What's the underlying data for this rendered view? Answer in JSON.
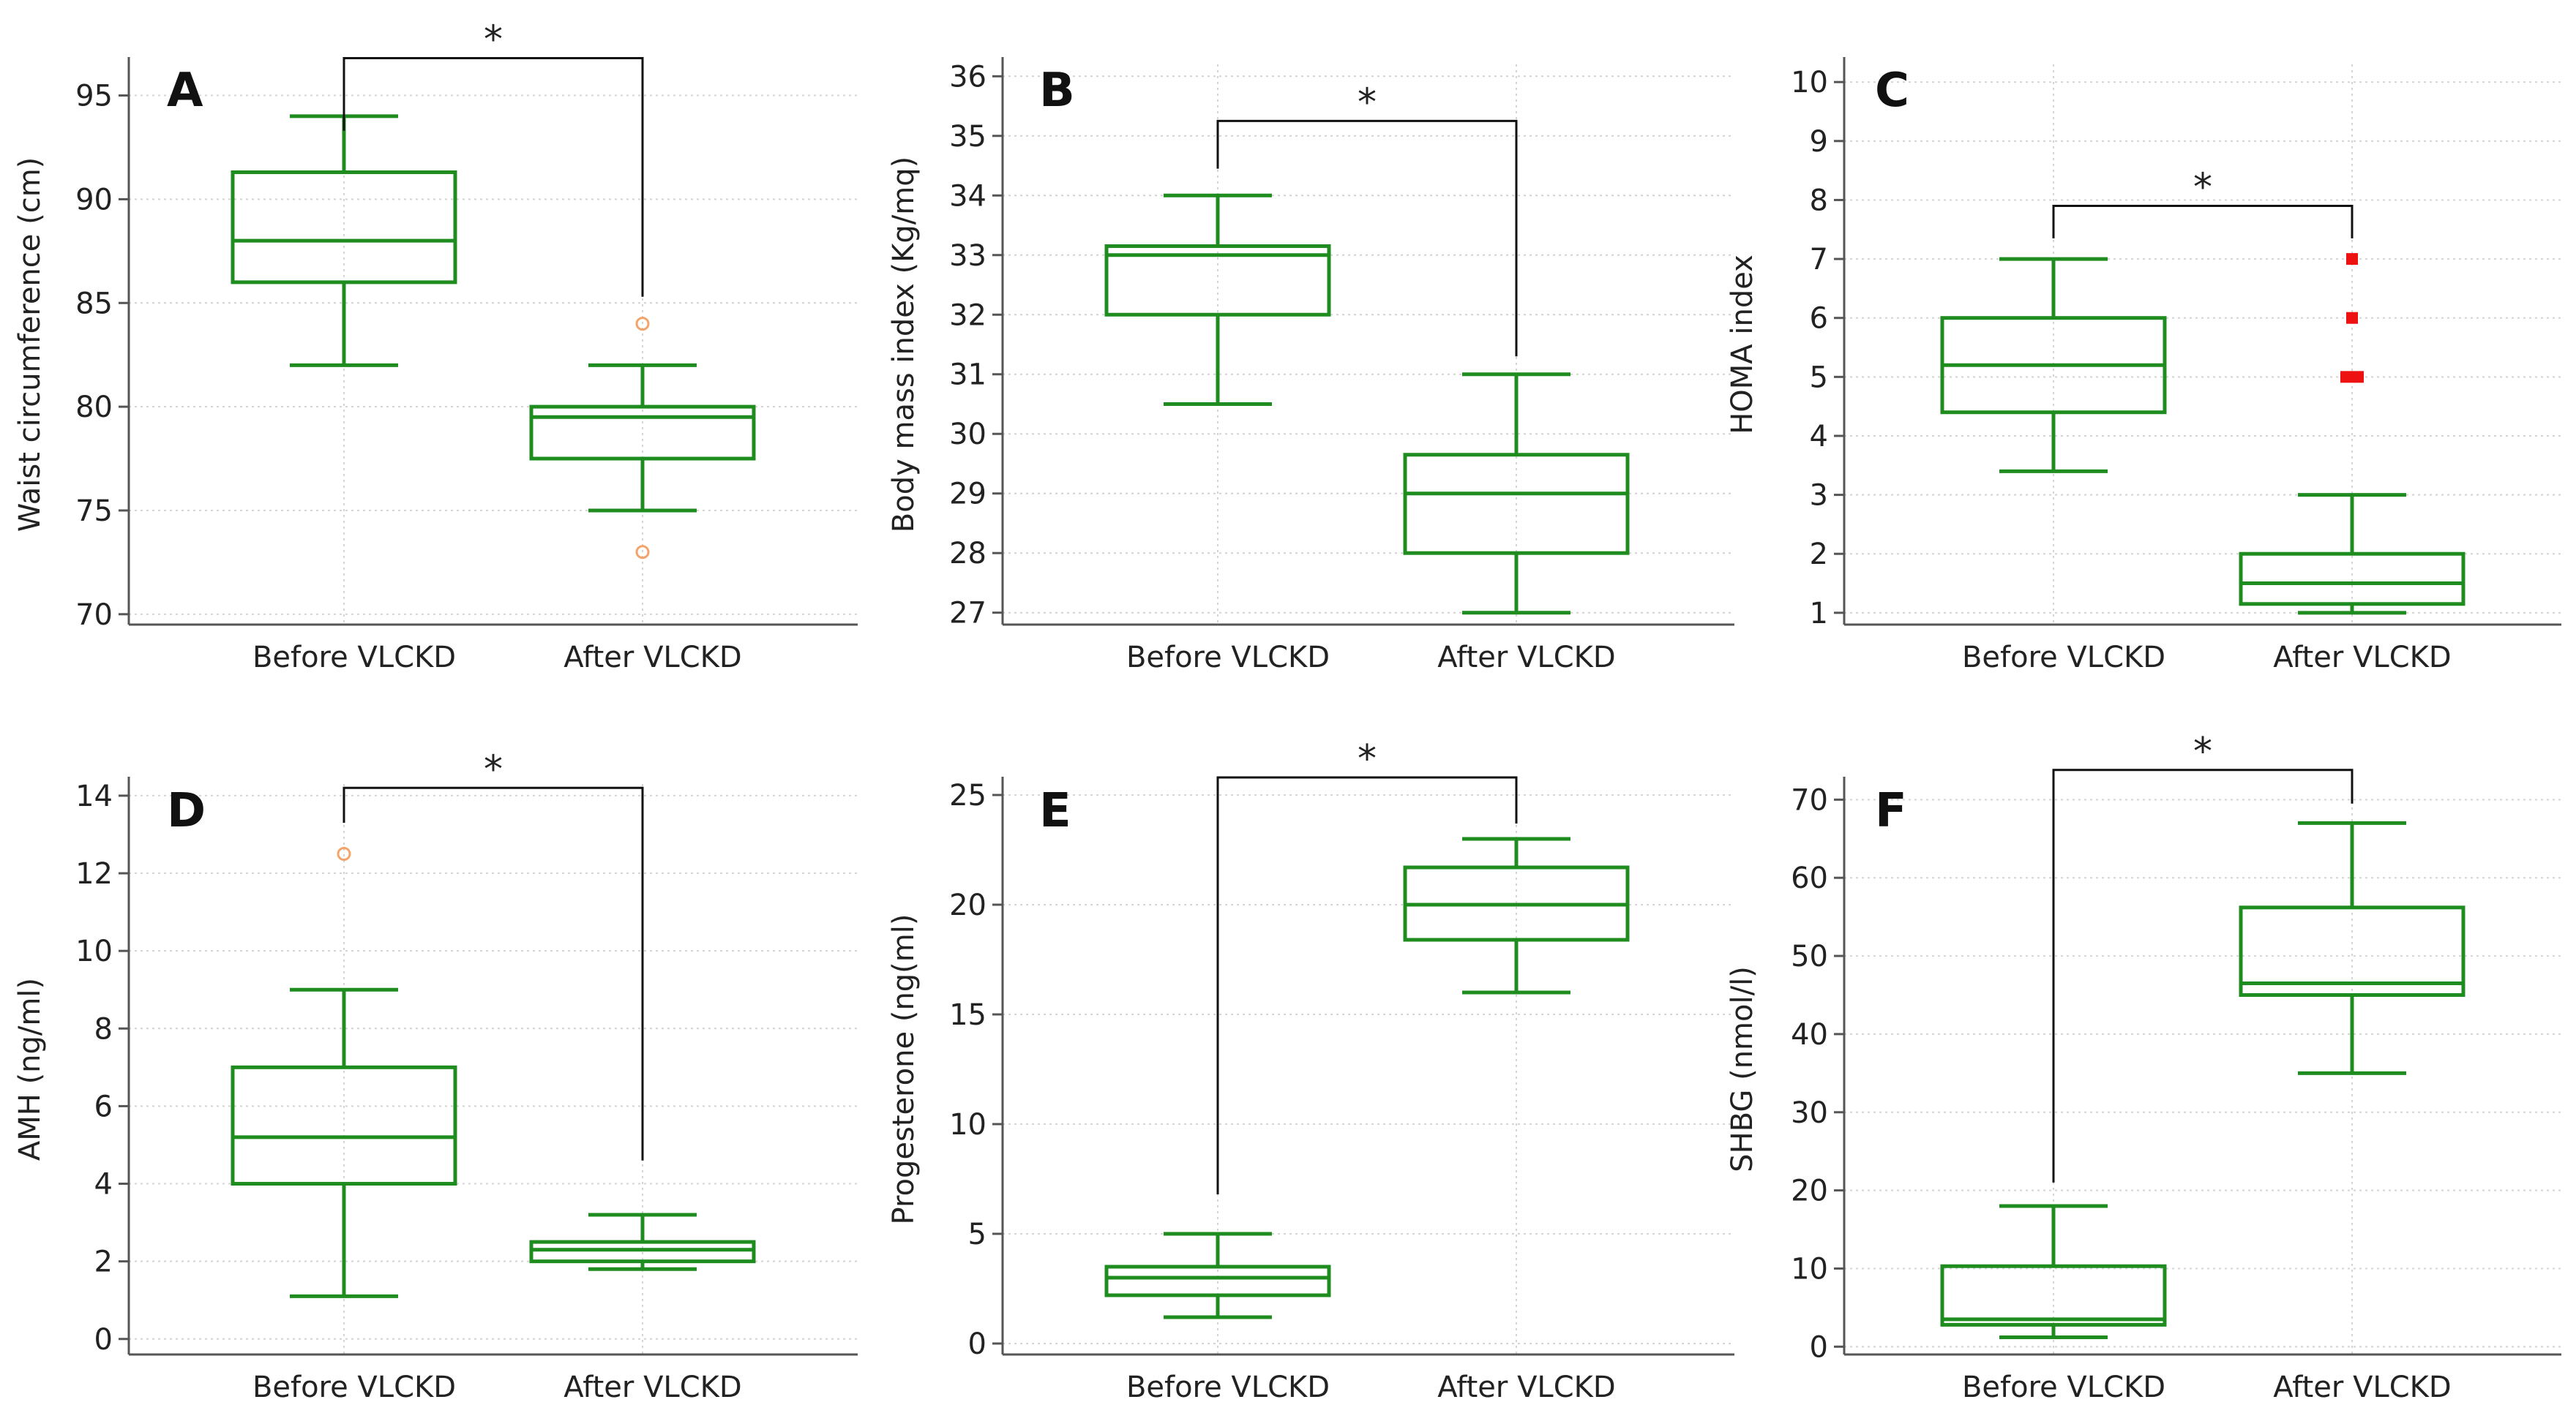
{
  "colors": {
    "box": "#1f8c1f",
    "grid": "#d4d4d4",
    "axis": "#555555",
    "bracket": "#111111",
    "outlier_open": "#f4a46a",
    "outlier_far": "#ee1111"
  },
  "chart_data": [
    {
      "panel": "A",
      "type": "box",
      "ylabel": "Waist circumference (cm)",
      "yticks": [
        70,
        75,
        80,
        85,
        90,
        95
      ],
      "ylim": [
        69.5,
        96.5
      ],
      "categories": [
        "Before VLCKD",
        "After VLCKD"
      ],
      "boxes": [
        {
          "whisker_low": 82,
          "q1": 86,
          "median": 88,
          "q3": 91.3,
          "whisker_high": 94,
          "outliers": []
        },
        {
          "whisker_low": 75,
          "q1": 77.5,
          "median": 79.5,
          "q3": 80,
          "whisker_high": 82,
          "outliers": [
            84,
            73
          ]
        }
      ],
      "significance": {
        "label": "*",
        "top": 96.8,
        "left_end": 93.3,
        "right_end": 85.3
      }
    },
    {
      "panel": "B",
      "type": "box",
      "ylabel": "Body mass index (Kg/mq)",
      "yticks": [
        27,
        28,
        29,
        30,
        31,
        32,
        33,
        34,
        35,
        36
      ],
      "ylim": [
        26.8,
        36.2
      ],
      "categories": [
        "Before VLCKD",
        "After VLCKD"
      ],
      "boxes": [
        {
          "whisker_low": 30.5,
          "q1": 32,
          "median": 33,
          "q3": 33.15,
          "whisker_high": 34,
          "outliers": []
        },
        {
          "whisker_low": 27,
          "q1": 28,
          "median": 29,
          "q3": 29.65,
          "whisker_high": 31,
          "outliers": []
        }
      ],
      "significance": {
        "label": "*",
        "top": 35.25,
        "left_end": 34.45,
        "right_end": 31.3
      }
    },
    {
      "panel": "C",
      "type": "box",
      "ylabel": "HOMA index",
      "yticks": [
        1,
        2,
        3,
        4,
        5,
        6,
        7,
        8,
        9,
        10
      ],
      "ylim": [
        0.8,
        10.3
      ],
      "categories": [
        "Before VLCKD",
        "After VLCKD"
      ],
      "boxes": [
        {
          "whisker_low": 3.4,
          "q1": 4.4,
          "median": 5.2,
          "q3": 6,
          "whisker_high": 7,
          "outliers": []
        },
        {
          "whisker_low": 1,
          "q1": 1.15,
          "median": 1.5,
          "q3": 2,
          "whisker_high": 3,
          "outliers_far": [
            7,
            6,
            5,
            5
          ]
        }
      ],
      "significance": {
        "label": "*",
        "top": 7.9,
        "left_end": 7.35,
        "right_end": 7.35
      }
    },
    {
      "panel": "D",
      "type": "box",
      "ylabel": "AMH (ng/ml)",
      "yticks": [
        0,
        2,
        4,
        6,
        8,
        10,
        12,
        14
      ],
      "ylim": [
        -0.4,
        14.3
      ],
      "categories": [
        "Before VLCKD",
        "After VLCKD"
      ],
      "boxes": [
        {
          "whisker_low": 1.1,
          "q1": 4,
          "median": 5.2,
          "q3": 7,
          "whisker_high": 9,
          "outliers": [
            12.5
          ]
        },
        {
          "whisker_low": 1.8,
          "q1": 2,
          "median": 2.3,
          "q3": 2.5,
          "whisker_high": 3.2,
          "outliers": []
        }
      ],
      "significance": {
        "label": "*",
        "top": 14.2,
        "left_end": 13.3,
        "right_end": 4.6
      }
    },
    {
      "panel": "E",
      "type": "box",
      "ylabel": "Progesterone (ng(ml)",
      "yticks": [
        0,
        5,
        10,
        15,
        20,
        25
      ],
      "ylim": [
        -0.5,
        25.5
      ],
      "categories": [
        "Before VLCKD",
        "After VLCKD"
      ],
      "boxes": [
        {
          "whisker_low": 1.2,
          "q1": 2.2,
          "median": 3,
          "q3": 3.5,
          "whisker_high": 5,
          "outliers": []
        },
        {
          "whisker_low": 16,
          "q1": 18.4,
          "median": 20,
          "q3": 21.7,
          "whisker_high": 23,
          "outliers": []
        }
      ],
      "significance": {
        "label": "*",
        "top": 25.8,
        "left_end": 6.8,
        "right_end": 23.7
      }
    },
    {
      "panel": "F",
      "type": "box",
      "ylabel": "SHBG (nmol/l)",
      "yticks": [
        0,
        10,
        20,
        30,
        40,
        50,
        60,
        70
      ],
      "ylim": [
        -1,
        72
      ],
      "categories": [
        "Before VLCKD",
        "After VLCKD"
      ],
      "boxes": [
        {
          "whisker_low": 1.2,
          "q1": 2.8,
          "median": 3.5,
          "q3": 10.3,
          "whisker_high": 18,
          "outliers": []
        },
        {
          "whisker_low": 35,
          "q1": 45,
          "median": 46.5,
          "q3": 56.2,
          "whisker_high": 67,
          "outliers": []
        }
      ],
      "significance": {
        "label": "*",
        "top": 73.8,
        "left_end": 21,
        "right_end": 69.5
      }
    }
  ]
}
